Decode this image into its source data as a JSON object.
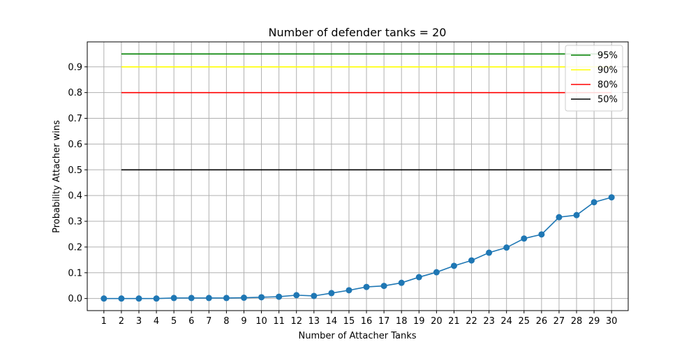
{
  "chart_data": {
    "type": "line",
    "title": "Number of defender tanks = 20",
    "xlabel": "Number of Attacher Tanks",
    "ylabel": "Probability Attacher wins",
    "x": [
      1,
      2,
      3,
      4,
      5,
      6,
      7,
      8,
      9,
      10,
      11,
      12,
      13,
      14,
      15,
      16,
      17,
      18,
      19,
      20,
      21,
      22,
      23,
      24,
      25,
      26,
      27,
      28,
      29,
      30
    ],
    "xlim": [
      0.05,
      30.95
    ],
    "ylim": [
      -0.047,
      0.997
    ],
    "yticks": [
      0.0,
      0.1,
      0.2,
      0.3,
      0.4,
      0.5,
      0.6,
      0.7,
      0.8,
      0.9
    ],
    "grid": true,
    "legend_position": "top-right",
    "series": [
      {
        "name": "",
        "color": "#1f77b4",
        "marker": "circle",
        "x": [
          1,
          2,
          3,
          4,
          5,
          6,
          7,
          8,
          9,
          10,
          11,
          12,
          13,
          14,
          15,
          16,
          17,
          18,
          19,
          20,
          21,
          22,
          23,
          24,
          25,
          26,
          27,
          28,
          29,
          30
        ],
        "values": [
          0.0,
          0.0,
          0.0,
          0.0,
          0.002,
          0.002,
          0.002,
          0.002,
          0.003,
          0.005,
          0.007,
          0.013,
          0.01,
          0.021,
          0.032,
          0.045,
          0.049,
          0.061,
          0.083,
          0.102,
          0.127,
          0.148,
          0.178,
          0.198,
          0.233,
          0.249,
          0.316,
          0.324,
          0.374,
          0.393
        ]
      }
    ],
    "reference_lines": [
      {
        "name": "95%",
        "y": 0.95,
        "x_start": 2,
        "x_end": 30,
        "color": "#008000"
      },
      {
        "name": "90%",
        "y": 0.9,
        "x_start": 2,
        "x_end": 30,
        "color": "#ffff00"
      },
      {
        "name": "80%",
        "y": 0.8,
        "x_start": 2,
        "x_end": 30,
        "color": "#ff0000"
      },
      {
        "name": "50%",
        "y": 0.5,
        "x_start": 2,
        "x_end": 30,
        "color": "#000000"
      }
    ]
  }
}
